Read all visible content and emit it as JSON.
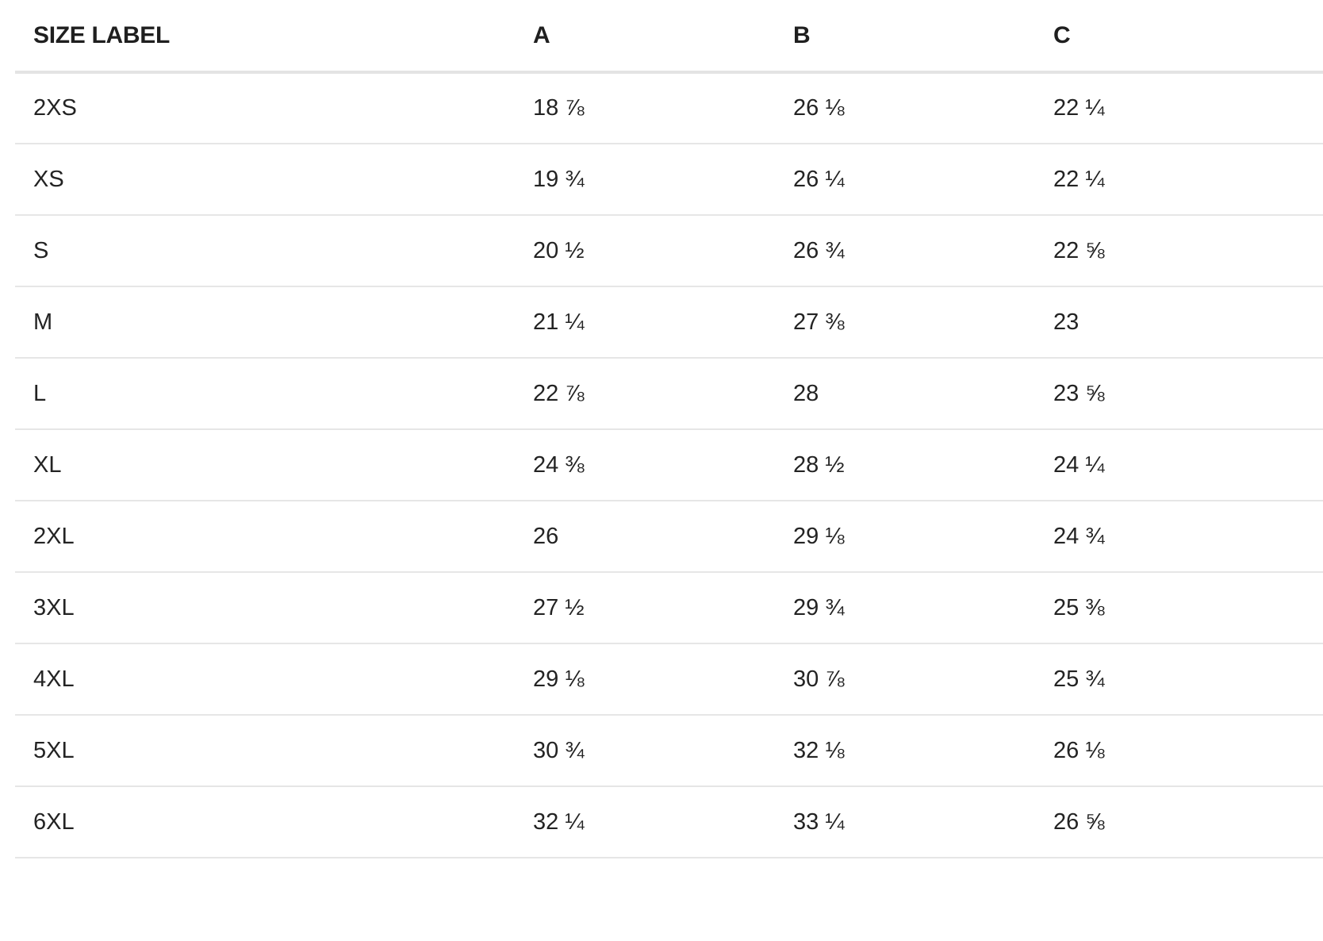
{
  "table": {
    "headers": [
      "SIZE LABEL",
      "A",
      "B",
      "C"
    ],
    "rows": [
      [
        "2XS",
        "18 ⅞",
        "26 ⅛",
        "22 ¼"
      ],
      [
        "XS",
        "19 ¾",
        "26 ¼",
        "22 ¼"
      ],
      [
        "S",
        "20 ½",
        "26 ¾",
        "22 ⅝"
      ],
      [
        "M",
        "21 ¼",
        "27 ⅜",
        "23"
      ],
      [
        "L",
        "22 ⅞",
        "28",
        "23 ⅝"
      ],
      [
        "XL",
        "24 ⅜",
        "28 ½",
        "24 ¼"
      ],
      [
        "2XL",
        "26",
        "29 ⅛",
        "24 ¾"
      ],
      [
        "3XL",
        "27 ½",
        "29 ¾",
        "25 ⅜"
      ],
      [
        "4XL",
        "29 ⅛",
        "30 ⅞",
        "25 ¾"
      ],
      [
        "5XL",
        "30 ¾",
        "32 ⅛",
        "26 ⅛"
      ],
      [
        "6XL",
        "32 ¼",
        "33 ¼",
        "26 ⅝"
      ]
    ]
  },
  "colors": {
    "text": "#222222",
    "header_rule": "#e4e4e4",
    "row_rule": "#e6e6e6",
    "background": "#ffffff"
  }
}
